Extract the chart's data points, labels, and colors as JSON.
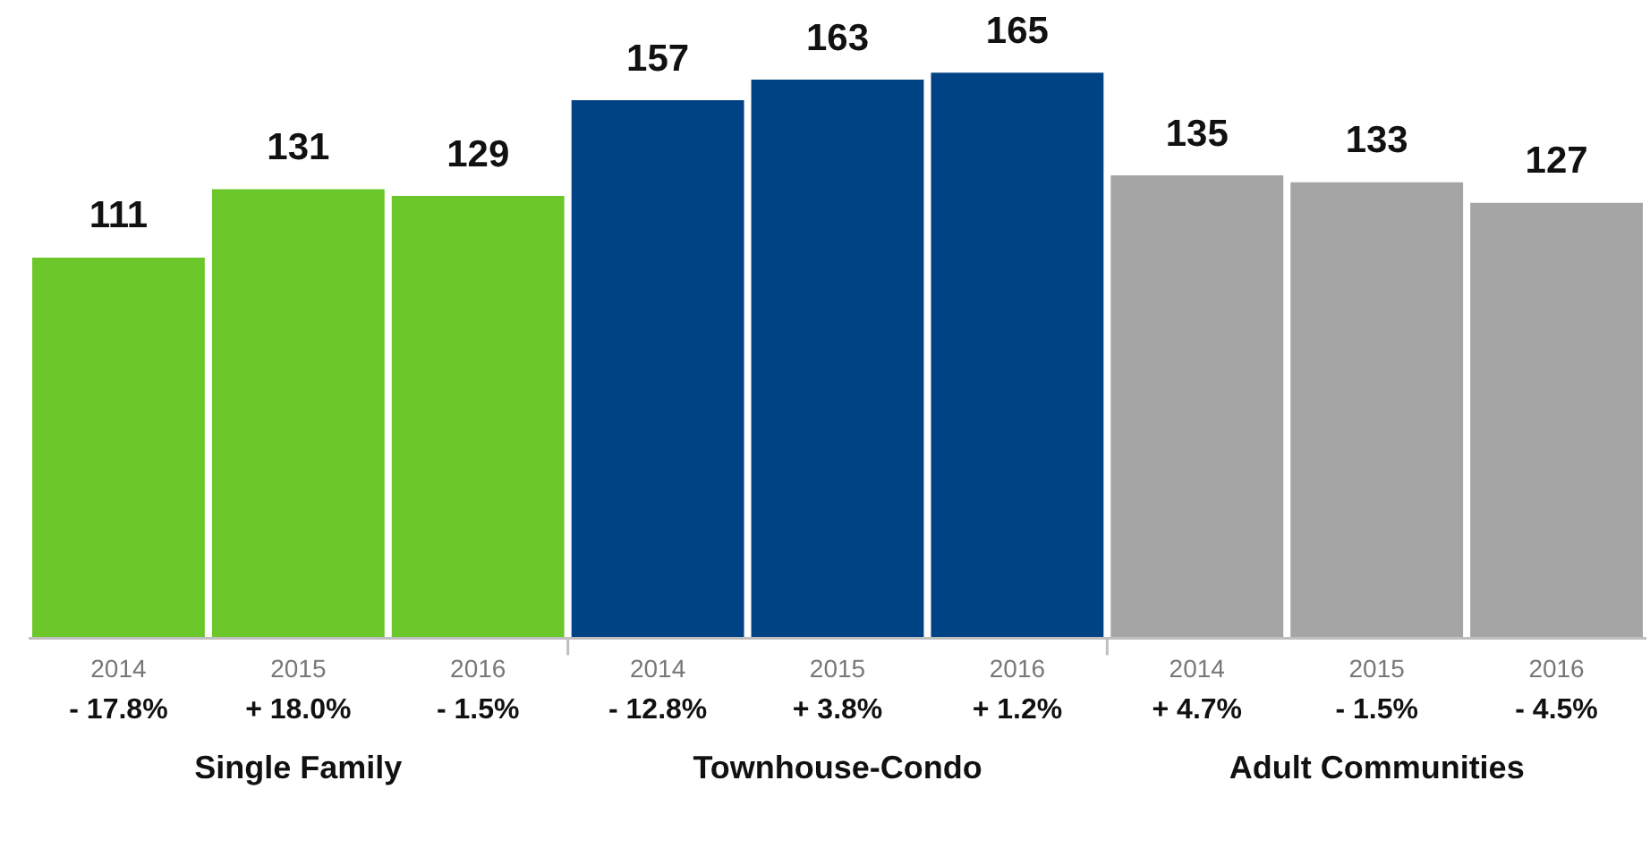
{
  "chart_data": {
    "type": "bar",
    "categories": [
      "2014",
      "2015",
      "2016",
      "2014",
      "2015",
      "2016",
      "2014",
      "2015",
      "2016"
    ],
    "series": [
      {
        "color": "#6cc72b",
        "values": [
          111,
          131,
          129,
          null,
          null,
          null,
          null,
          null,
          null
        ]
      },
      {
        "color": "#004385",
        "values": [
          null,
          null,
          null,
          157,
          163,
          165,
          null,
          null,
          null
        ]
      },
      {
        "color": "#a5a5a5",
        "values": [
          null,
          null,
          null,
          null,
          null,
          null,
          135,
          133,
          127
        ]
      }
    ],
    "stacked": true,
    "data_labels": true,
    "grid": false,
    "legend": false,
    "annotations": [
      "- 17.8%",
      "+ 18.0%",
      "- 1.5%",
      "- 12.8%",
      "+ 3.8%",
      "+ 1.2%",
      "+ 4.7%",
      "- 1.5%",
      "- 4.5%",
      "Single Family",
      "Townhouse-Condo",
      "Adult Communities"
    ]
  }
}
